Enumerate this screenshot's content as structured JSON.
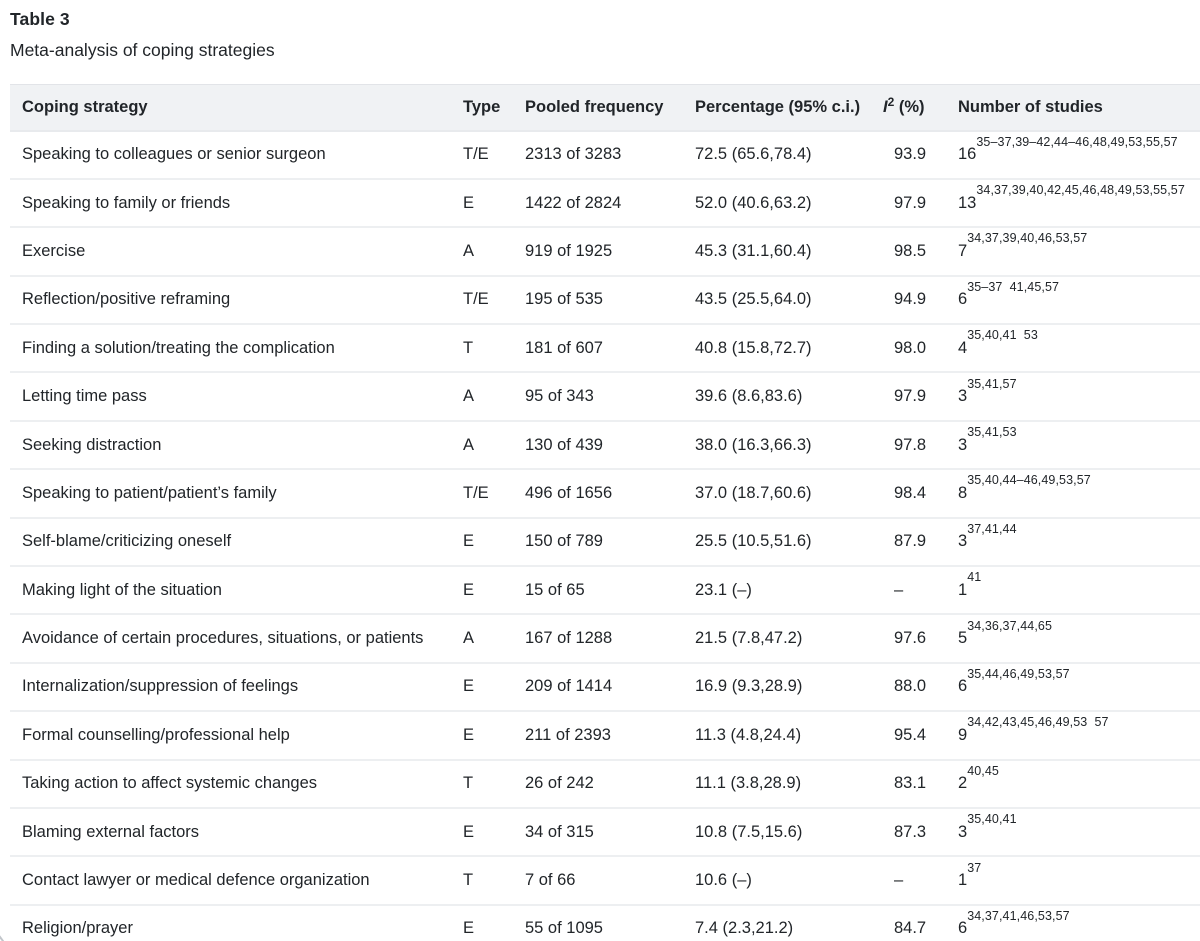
{
  "page": {
    "title": "Table 3",
    "caption": "Meta-analysis of coping strategies"
  },
  "table": {
    "columns": {
      "strategy": "Coping strategy",
      "type": "Type",
      "pooled": "Pooled frequency",
      "percentage": "Percentage (95% c.i.)",
      "i2_letter": "I",
      "i2_sup": "2",
      "i2_rest": " (%)",
      "studies": "Number of studies"
    },
    "rows": [
      {
        "strategy": "Speaking to colleagues or senior surgeon",
        "type": "T/E",
        "pooled": "2313 of 3283",
        "percentage": "72.5 (65.6,78.4)",
        "i2": "93.9",
        "n": "16",
        "refs": "35–37,39–42,44–46,48,49,53,55,57"
      },
      {
        "strategy": "Speaking to family or friends",
        "type": "E",
        "pooled": "1422 of 2824",
        "percentage": "52.0 (40.6,63.2)",
        "i2": "97.9",
        "n": "13",
        "refs": "34,37,39,40,42,45,46,48,49,53,55,57"
      },
      {
        "strategy": "Exercise",
        "type": "A",
        "pooled": "919 of 1925",
        "percentage": "45.3 (31.1,60.4)",
        "i2": "98.5",
        "n": "7",
        "refs": "34,37,39,40,46,53,57"
      },
      {
        "strategy": "Reflection/positive reframing",
        "type": "T/E",
        "pooled": "195 of 535",
        "percentage": "43.5 (25.5,64.0)",
        "i2": "94.9",
        "n": "6",
        "refs": "35–37  41,45,57"
      },
      {
        "strategy": "Finding a solution/treating the complication",
        "type": "T",
        "pooled": "181 of 607",
        "percentage": "40.8 (15.8,72.7)",
        "i2": "98.0",
        "n": "4",
        "refs": "35,40,41  53"
      },
      {
        "strategy": "Letting time pass",
        "type": "A",
        "pooled": "95 of 343",
        "percentage": "39.6 (8.6,83.6)",
        "i2": "97.9",
        "n": "3",
        "refs": "35,41,57"
      },
      {
        "strategy": "Seeking distraction",
        "type": "A",
        "pooled": "130 of 439",
        "percentage": "38.0 (16.3,66.3)",
        "i2": "97.8",
        "n": "3",
        "refs": "35,41,53"
      },
      {
        "strategy": "Speaking to patient/patient’s family",
        "type": "T/E",
        "pooled": "496 of 1656",
        "percentage": "37.0 (18.7,60.6)",
        "i2": "98.4",
        "n": "8",
        "refs": "35,40,44–46,49,53,57"
      },
      {
        "strategy": "Self-blame/criticizing oneself",
        "type": "E",
        "pooled": "150 of 789",
        "percentage": "25.5 (10.5,51.6)",
        "i2": "87.9",
        "n": "3",
        "refs": "37,41,44"
      },
      {
        "strategy": "Making light of the situation",
        "type": "E",
        "pooled": "15 of 65",
        "percentage": "23.1 (–)",
        "i2": "–",
        "n": "1",
        "refs": "41"
      },
      {
        "strategy": "Avoidance of certain procedures, situations, or patients",
        "type": "A",
        "pooled": "167 of 1288",
        "percentage": "21.5 (7.8,47.2)",
        "i2": "97.6",
        "n": "5",
        "refs": "34,36,37,44,65"
      },
      {
        "strategy": "Internalization/suppression of feelings",
        "type": "E",
        "pooled": "209 of 1414",
        "percentage": "16.9 (9.3,28.9)",
        "i2": "88.0",
        "n": "6",
        "refs": "35,44,46,49,53,57"
      },
      {
        "strategy": "Formal counselling/professional help",
        "type": "E",
        "pooled": "211 of 2393",
        "percentage": "11.3 (4.8,24.4)",
        "i2": "95.4",
        "n": "9",
        "refs": "34,42,43,45,46,49,53  57"
      },
      {
        "strategy": "Taking action to affect systemic changes",
        "type": "T",
        "pooled": "26 of 242",
        "percentage": "11.1 (3.8,28.9)",
        "i2": "83.1",
        "n": "2",
        "refs": "40,45"
      },
      {
        "strategy": "Blaming external factors",
        "type": "E",
        "pooled": "34 of 315",
        "percentage": "10.8 (7.5,15.6)",
        "i2": "87.3",
        "n": "3",
        "refs": "35,40,41"
      },
      {
        "strategy": "Contact lawyer or medical defence organization",
        "type": "T",
        "pooled": "7 of 66",
        "percentage": "10.6 (–)",
        "i2": "–",
        "n": "1",
        "refs": "37"
      },
      {
        "strategy": "Religion/prayer",
        "type": "E",
        "pooled": "55 of 1095",
        "percentage": "7.4 (2.3,21.2)",
        "i2": "84.7",
        "n": "6",
        "refs": "34,37,41,46,53,57"
      }
    ]
  }
}
